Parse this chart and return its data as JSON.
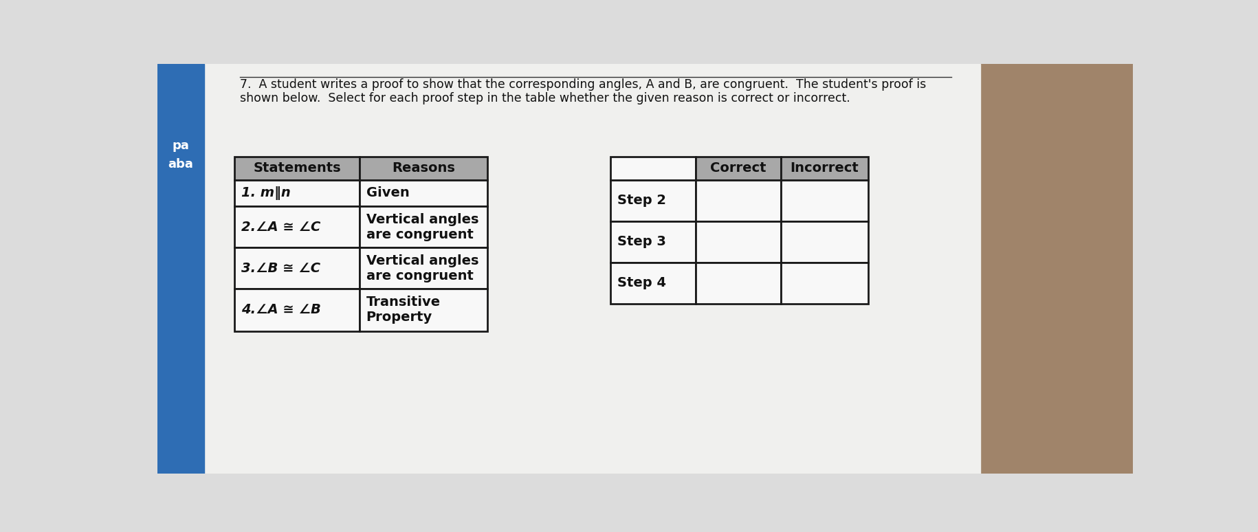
{
  "title_line1": "7.  A student writes a proof to show that the corresponding angles, A and B, are congruent.  The student's proof is",
  "title_line2": "shown below.  Select for each proof step in the table whether the given reason is correct or incorrect.",
  "bg_paper": "#dcdcdc",
  "bg_wood": "#a0846a",
  "paper_color": "#e2e2e2",
  "white_paper": "#f0f0ee",
  "left_table": {
    "headers": [
      "Statements",
      "Reasons"
    ],
    "rows": [
      [
        "1. m‖n",
        "Given"
      ],
      [
        "2.∠A ≅ ∠C",
        "Vertical angles\nare congruent"
      ],
      [
        "3.∠B ≅ ∠C",
        "Vertical angles\nare congruent"
      ],
      [
        "4.∠A ≅ ∠B",
        "Transitive\nProperty"
      ]
    ],
    "header_bg": "#a8a8a8",
    "cell_bg": "#f8f8f8",
    "border_color": "#1a1a1a"
  },
  "right_table": {
    "headers": [
      "",
      "Correct",
      "Incorrect"
    ],
    "rows": [
      [
        "Step 2",
        "",
        ""
      ],
      [
        "Step 3",
        "",
        ""
      ],
      [
        "Step 4",
        "",
        ""
      ]
    ],
    "header_bg": "#a8a8a8",
    "cell_bg": "#f8f8f8",
    "border_color": "#1a1a1a"
  },
  "sidebar_color": "#2e6db4",
  "sidebar_text1": "pa",
  "sidebar_text2": "aba"
}
